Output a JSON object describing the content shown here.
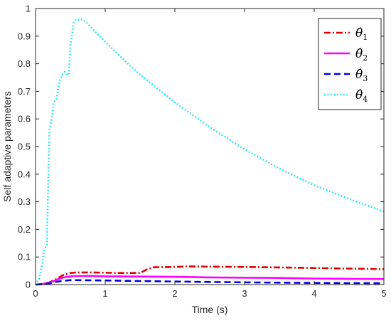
{
  "chart_data": {
    "type": "line",
    "xlabel": "Time (s)",
    "ylabel": "Self adaptive parameters",
    "xlim": [
      0,
      5
    ],
    "ylim": [
      0,
      1
    ],
    "xticks": [
      "0",
      "1",
      "2",
      "3",
      "4",
      "5"
    ],
    "yticks": [
      "0",
      "0.1",
      "0.2",
      "0.3",
      "0.4",
      "0.5",
      "0.6",
      "0.7",
      "0.8",
      "0.9",
      "1"
    ],
    "grid": false,
    "legend_position": "top-right",
    "series": [
      {
        "name": "θ̂1",
        "symbol": "θ̂",
        "sub": "1",
        "color": "#e00000",
        "dash": "dashdot",
        "x": [
          0,
          0.1,
          0.2,
          0.3,
          0.4,
          0.5,
          0.6,
          0.8,
          1.0,
          1.2,
          1.5,
          1.6,
          1.7,
          2.0,
          2.2,
          2.5,
          3.0,
          3.5,
          4.0,
          4.5,
          5.0
        ],
        "y": [
          0,
          0.002,
          0.008,
          0.02,
          0.035,
          0.042,
          0.044,
          0.044,
          0.043,
          0.042,
          0.042,
          0.055,
          0.063,
          0.064,
          0.066,
          0.065,
          0.064,
          0.062,
          0.06,
          0.058,
          0.056
        ]
      },
      {
        "name": "θ̂2",
        "symbol": "θ̂",
        "sub": "2",
        "color": "#ff00ff",
        "dash": "solid",
        "x": [
          0,
          0.1,
          0.2,
          0.3,
          0.4,
          0.5,
          0.6,
          0.8,
          1.0,
          1.5,
          2.0,
          2.5,
          3.0,
          3.5,
          4.0,
          4.5,
          5.0
        ],
        "y": [
          0,
          0.002,
          0.007,
          0.017,
          0.026,
          0.03,
          0.031,
          0.031,
          0.03,
          0.029,
          0.028,
          0.026,
          0.025,
          0.024,
          0.022,
          0.021,
          0.02
        ]
      },
      {
        "name": "θ̂3",
        "symbol": "θ̂",
        "sub": "3",
        "color": "#0000e0",
        "dash": "dashed",
        "x": [
          0,
          0.1,
          0.2,
          0.3,
          0.4,
          0.5,
          0.6,
          1.0,
          1.5,
          2.0,
          3.0,
          4.0,
          5.0
        ],
        "y": [
          0,
          0.001,
          0.004,
          0.01,
          0.014,
          0.016,
          0.016,
          0.015,
          0.013,
          0.011,
          0.008,
          0.006,
          0.005
        ]
      },
      {
        "name": "θ̂4",
        "symbol": "θ̂",
        "sub": "4",
        "color": "#00e5e5",
        "dash": "dotted",
        "x": [
          0,
          0.05,
          0.1,
          0.13,
          0.16,
          0.2,
          0.24,
          0.26,
          0.3,
          0.34,
          0.38,
          0.42,
          0.46,
          0.48,
          0.5,
          0.52,
          0.55,
          0.58,
          0.62,
          0.66,
          0.7,
          0.75,
          0.8,
          1.0,
          1.2,
          1.5,
          1.8,
          2.0,
          2.5,
          3.0,
          3.5,
          4.0,
          4.5,
          5.0
        ],
        "y": [
          0,
          0.02,
          0.08,
          0.13,
          0.14,
          0.56,
          0.61,
          0.66,
          0.67,
          0.73,
          0.76,
          0.77,
          0.76,
          0.76,
          0.87,
          0.9,
          0.95,
          0.96,
          0.96,
          0.96,
          0.955,
          0.945,
          0.93,
          0.88,
          0.83,
          0.76,
          0.7,
          0.66,
          0.57,
          0.49,
          0.42,
          0.36,
          0.31,
          0.265
        ]
      }
    ]
  }
}
